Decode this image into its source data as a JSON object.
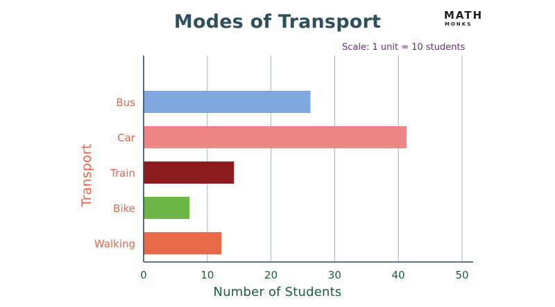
{
  "header": {
    "title": "Modes of Transport",
    "logo_main": "MATH",
    "logo_sub": "MONKS",
    "scale_note": "Scale: 1 unit = 10 students"
  },
  "chart_data": {
    "type": "bar",
    "orientation": "horizontal",
    "title": "Modes of Transport",
    "xlabel": "Number of Students",
    "ylabel": "Transport",
    "categories": [
      "Bus",
      "Car",
      "Train",
      "Bike",
      "Walking"
    ],
    "values": [
      26.2,
      41.3,
      14.2,
      7.2,
      12.2
    ],
    "colors": [
      "#7fa7dd",
      "#ee8686",
      "#8d1c20",
      "#6db648",
      "#e86a48"
    ],
    "xlim": [
      0,
      50
    ],
    "xticks": [
      0,
      10,
      20,
      30,
      40,
      50
    ],
    "grid": "vertical"
  }
}
